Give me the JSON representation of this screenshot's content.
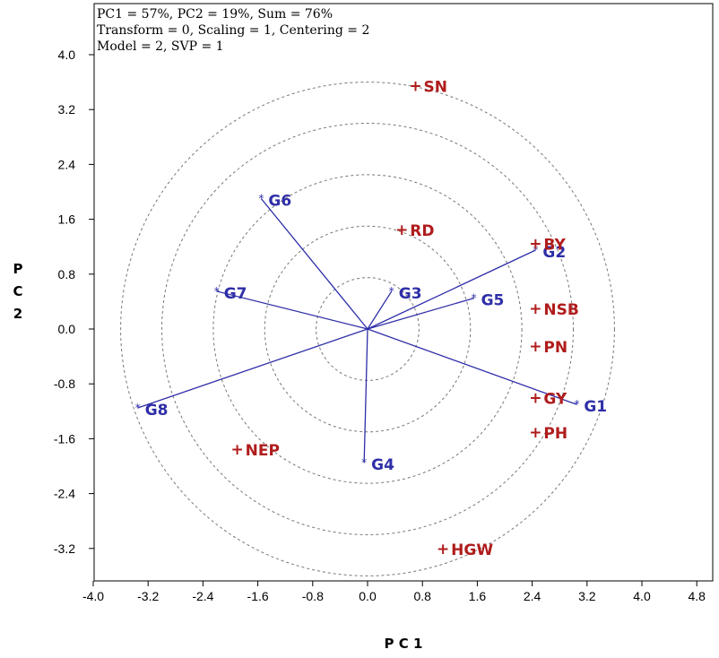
{
  "chart_data": {
    "type": "scatter",
    "subtype": "GGE biplot",
    "info": [
      "PC1 = 57%, PC2 = 19%, Sum = 76%",
      "Transform = 0, Scaling = 1, Centering = 2",
      "Model = 2, SVP = 1"
    ],
    "xlabel": "P C 1",
    "ylabel": [
      "P",
      "C",
      "2"
    ],
    "xlim": [
      -4.0,
      5.0
    ],
    "ylim": [
      -3.6,
      4.4
    ],
    "xticks": [
      "-4.0",
      "-3.2",
      "-2.4",
      "-1.6",
      "-0.8",
      "0.0",
      "0.8",
      "1.6",
      "2.4",
      "3.2",
      "4.0",
      "4.8"
    ],
    "yticks": [
      "4.0",
      "3.2",
      "2.4",
      "1.6",
      "0.8",
      "0.0",
      "-0.8",
      "-1.6",
      "-2.4",
      "-3.2"
    ],
    "grid": false,
    "circle_radii": [
      0.75,
      1.5,
      2.25,
      3.0,
      3.6
    ],
    "genotypes": {
      "color": "#2e2ea8",
      "marker": "*",
      "points": [
        {
          "name": "G1",
          "x": 3.05,
          "y": -1.1
        },
        {
          "name": "G2",
          "x": 2.45,
          "y": 1.15
        },
        {
          "name": "G3",
          "x": 0.35,
          "y": 0.55
        },
        {
          "name": "G4",
          "x": -0.05,
          "y": -1.95
        },
        {
          "name": "G5",
          "x": 1.55,
          "y": 0.45
        },
        {
          "name": "G6",
          "x": -1.55,
          "y": 1.9
        },
        {
          "name": "G7",
          "x": -2.2,
          "y": 0.55
        },
        {
          "name": "G8",
          "x": -3.35,
          "y": -1.15
        }
      ]
    },
    "variables": {
      "color": "#b01c1c",
      "marker": "+",
      "points": [
        {
          "name": "SN",
          "x": 0.7,
          "y": 3.55
        },
        {
          "name": "RD",
          "x": 0.5,
          "y": 1.45
        },
        {
          "name": "BY",
          "x": 2.45,
          "y": 1.25
        },
        {
          "name": "NSB",
          "x": 2.45,
          "y": 0.3
        },
        {
          "name": "PN",
          "x": 2.45,
          "y": -0.25
        },
        {
          "name": "GY",
          "x": 2.45,
          "y": -1.0
        },
        {
          "name": "PH",
          "x": 2.45,
          "y": -1.5
        },
        {
          "name": "NEP",
          "x": -1.9,
          "y": -1.75
        },
        {
          "name": "HGW",
          "x": 1.1,
          "y": -3.2
        }
      ]
    }
  }
}
